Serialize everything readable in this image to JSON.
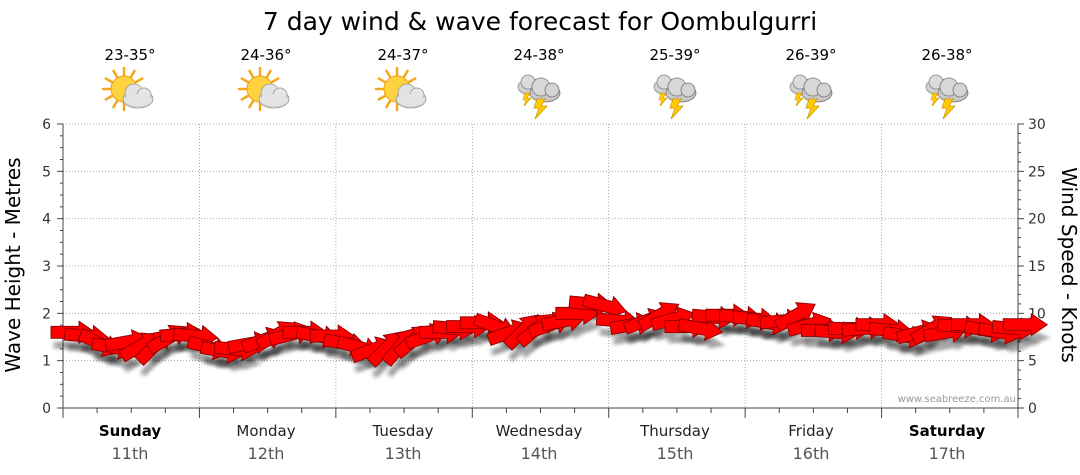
{
  "title": "7 day wind & wave forecast for Oombulgurri",
  "watermark": "www.seabreeze.com.au",
  "days": [
    {
      "name": "Sunday",
      "date": "11th",
      "temp": "23-35°",
      "icon": "sun-cloud-icon",
      "bold": true
    },
    {
      "name": "Monday",
      "date": "12th",
      "temp": "24-36°",
      "icon": "sun-cloud-icon",
      "bold": false
    },
    {
      "name": "Tuesday",
      "date": "13th",
      "temp": "24-37°",
      "icon": "sun-cloud-icon",
      "bold": false
    },
    {
      "name": "Wednesday",
      "date": "14th",
      "temp": "24-38°",
      "icon": "storm-icon",
      "bold": false
    },
    {
      "name": "Thursday",
      "date": "15th",
      "temp": "25-39°",
      "icon": "storm-icon",
      "bold": false
    },
    {
      "name": "Friday",
      "date": "16th",
      "temp": "26-39°",
      "icon": "storm-icon",
      "bold": false
    },
    {
      "name": "Saturday",
      "date": "17th",
      "temp": "26-38°",
      "icon": "storm-icon",
      "bold": true
    }
  ],
  "colors": {
    "arrow": "#ff0000",
    "arrow_stroke": "#8b0000",
    "grid": "#999999"
  },
  "chart_data": {
    "type": "line",
    "y_left": {
      "label": "Wave Height - Metres",
      "range": [
        0,
        6
      ],
      "ticks": [
        "0",
        "1",
        "2",
        "3",
        "4",
        "5",
        "6"
      ]
    },
    "y_right": {
      "label": "Wind Speed - Knots",
      "range": [
        0,
        30
      ],
      "ticks": [
        "0",
        "5",
        "10",
        "15",
        "20",
        "25",
        "30"
      ]
    },
    "grid": true,
    "series": [
      {
        "symbol": "wind-arrow",
        "color": "#ff0000",
        "points": [
          [
            0.0,
            8.0,
            90
          ],
          [
            0.1,
            7.6,
            95
          ],
          [
            0.2,
            6.8,
            115
          ],
          [
            0.3,
            6.4,
            100
          ],
          [
            0.4,
            7.0,
            80
          ],
          [
            0.5,
            6.6,
            60
          ],
          [
            0.6,
            6.6,
            45
          ],
          [
            0.7,
            7.4,
            60
          ],
          [
            0.8,
            7.8,
            85
          ],
          [
            0.9,
            7.6,
            95
          ],
          [
            1.0,
            6.4,
            105
          ],
          [
            1.1,
            6.0,
            100
          ],
          [
            1.2,
            6.2,
            95
          ],
          [
            1.3,
            6.8,
            80
          ],
          [
            1.4,
            7.2,
            70
          ],
          [
            1.5,
            7.8,
            60
          ],
          [
            1.6,
            7.8,
            75
          ],
          [
            1.7,
            8.0,
            90
          ],
          [
            1.8,
            7.6,
            100
          ],
          [
            1.9,
            7.6,
            90
          ],
          [
            2.0,
            6.8,
            100
          ],
          [
            2.1,
            6.4,
            105
          ],
          [
            2.2,
            6.2,
            70
          ],
          [
            2.3,
            6.4,
            45
          ],
          [
            2.4,
            6.6,
            40
          ],
          [
            2.5,
            7.2,
            50
          ],
          [
            2.6,
            7.6,
            70
          ],
          [
            2.7,
            8.0,
            90
          ],
          [
            2.8,
            8.4,
            95
          ],
          [
            2.9,
            8.6,
            90
          ],
          [
            3.0,
            9.0,
            90
          ],
          [
            3.1,
            8.6,
            110
          ],
          [
            3.2,
            8.0,
            70
          ],
          [
            3.3,
            8.2,
            45
          ],
          [
            3.4,
            8.4,
            50
          ],
          [
            3.5,
            8.8,
            70
          ],
          [
            3.6,
            9.2,
            80
          ],
          [
            3.7,
            10.0,
            90
          ],
          [
            3.8,
            11.0,
            95
          ],
          [
            3.9,
            10.8,
            105
          ],
          [
            4.0,
            9.2,
            95
          ],
          [
            4.1,
            8.8,
            80
          ],
          [
            4.2,
            9.2,
            70
          ],
          [
            4.3,
            9.8,
            60
          ],
          [
            4.4,
            9.4,
            75
          ],
          [
            4.5,
            8.6,
            90
          ],
          [
            4.6,
            8.4,
            100
          ],
          [
            4.7,
            9.6,
            95
          ],
          [
            4.8,
            9.8,
            90
          ],
          [
            4.9,
            9.6,
            95
          ],
          [
            5.0,
            9.4,
            95
          ],
          [
            5.1,
            9.0,
            100
          ],
          [
            5.2,
            9.2,
            85
          ],
          [
            5.3,
            9.8,
            60
          ],
          [
            5.4,
            8.8,
            75
          ],
          [
            5.5,
            8.2,
            90
          ],
          [
            5.6,
            8.0,
            95
          ],
          [
            5.7,
            8.4,
            90
          ],
          [
            5.8,
            8.4,
            85
          ],
          [
            5.9,
            8.8,
            90
          ],
          [
            6.0,
            8.2,
            95
          ],
          [
            6.1,
            7.6,
            100
          ],
          [
            6.2,
            8.0,
            75
          ],
          [
            6.3,
            8.4,
            60
          ],
          [
            6.4,
            8.0,
            80
          ],
          [
            6.5,
            8.6,
            95
          ],
          [
            6.6,
            8.8,
            90
          ],
          [
            6.7,
            8.2,
            100
          ],
          [
            6.8,
            8.0,
            100
          ],
          [
            6.9,
            8.4,
            95
          ],
          [
            6.98,
            8.8,
            90
          ]
        ]
      }
    ]
  }
}
